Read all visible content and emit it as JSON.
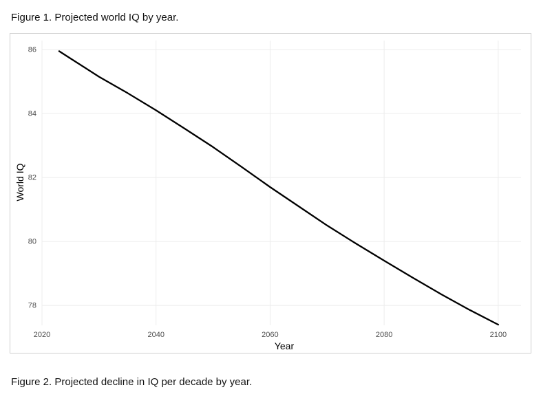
{
  "figures": {
    "figure1": {
      "caption": "Figure 1. Projected world IQ by year."
    },
    "figure2": {
      "caption": "Figure 2. Projected decline in IQ per decade by year."
    }
  },
  "colors": {
    "line": "#000000",
    "gridline": "#ececec",
    "tick_text": "#4d4d4d",
    "axis_title": "#000000",
    "figure_border": "#cfcfcf",
    "background": "#ffffff"
  },
  "chart_data": {
    "type": "line",
    "title": "",
    "xlabel": "Year",
    "ylabel": "World IQ",
    "x_ticks": [
      2020,
      2040,
      2060,
      2080,
      2100
    ],
    "y_ticks": [
      78,
      80,
      82,
      84,
      86
    ],
    "xlim": [
      2020,
      2104
    ],
    "ylim": [
      77.38,
      86.28
    ],
    "grid": true,
    "legend_position": "none",
    "x": [
      2023,
      2025,
      2030,
      2035,
      2040,
      2045,
      2050,
      2055,
      2060,
      2065,
      2070,
      2075,
      2080,
      2085,
      2090,
      2095,
      2100
    ],
    "series": [
      {
        "name": "Projected world IQ",
        "values": [
          85.95,
          85.72,
          85.15,
          84.64,
          84.1,
          83.53,
          82.95,
          82.33,
          81.7,
          81.1,
          80.5,
          79.94,
          79.4,
          78.87,
          78.35,
          77.86,
          77.4
        ]
      }
    ]
  }
}
